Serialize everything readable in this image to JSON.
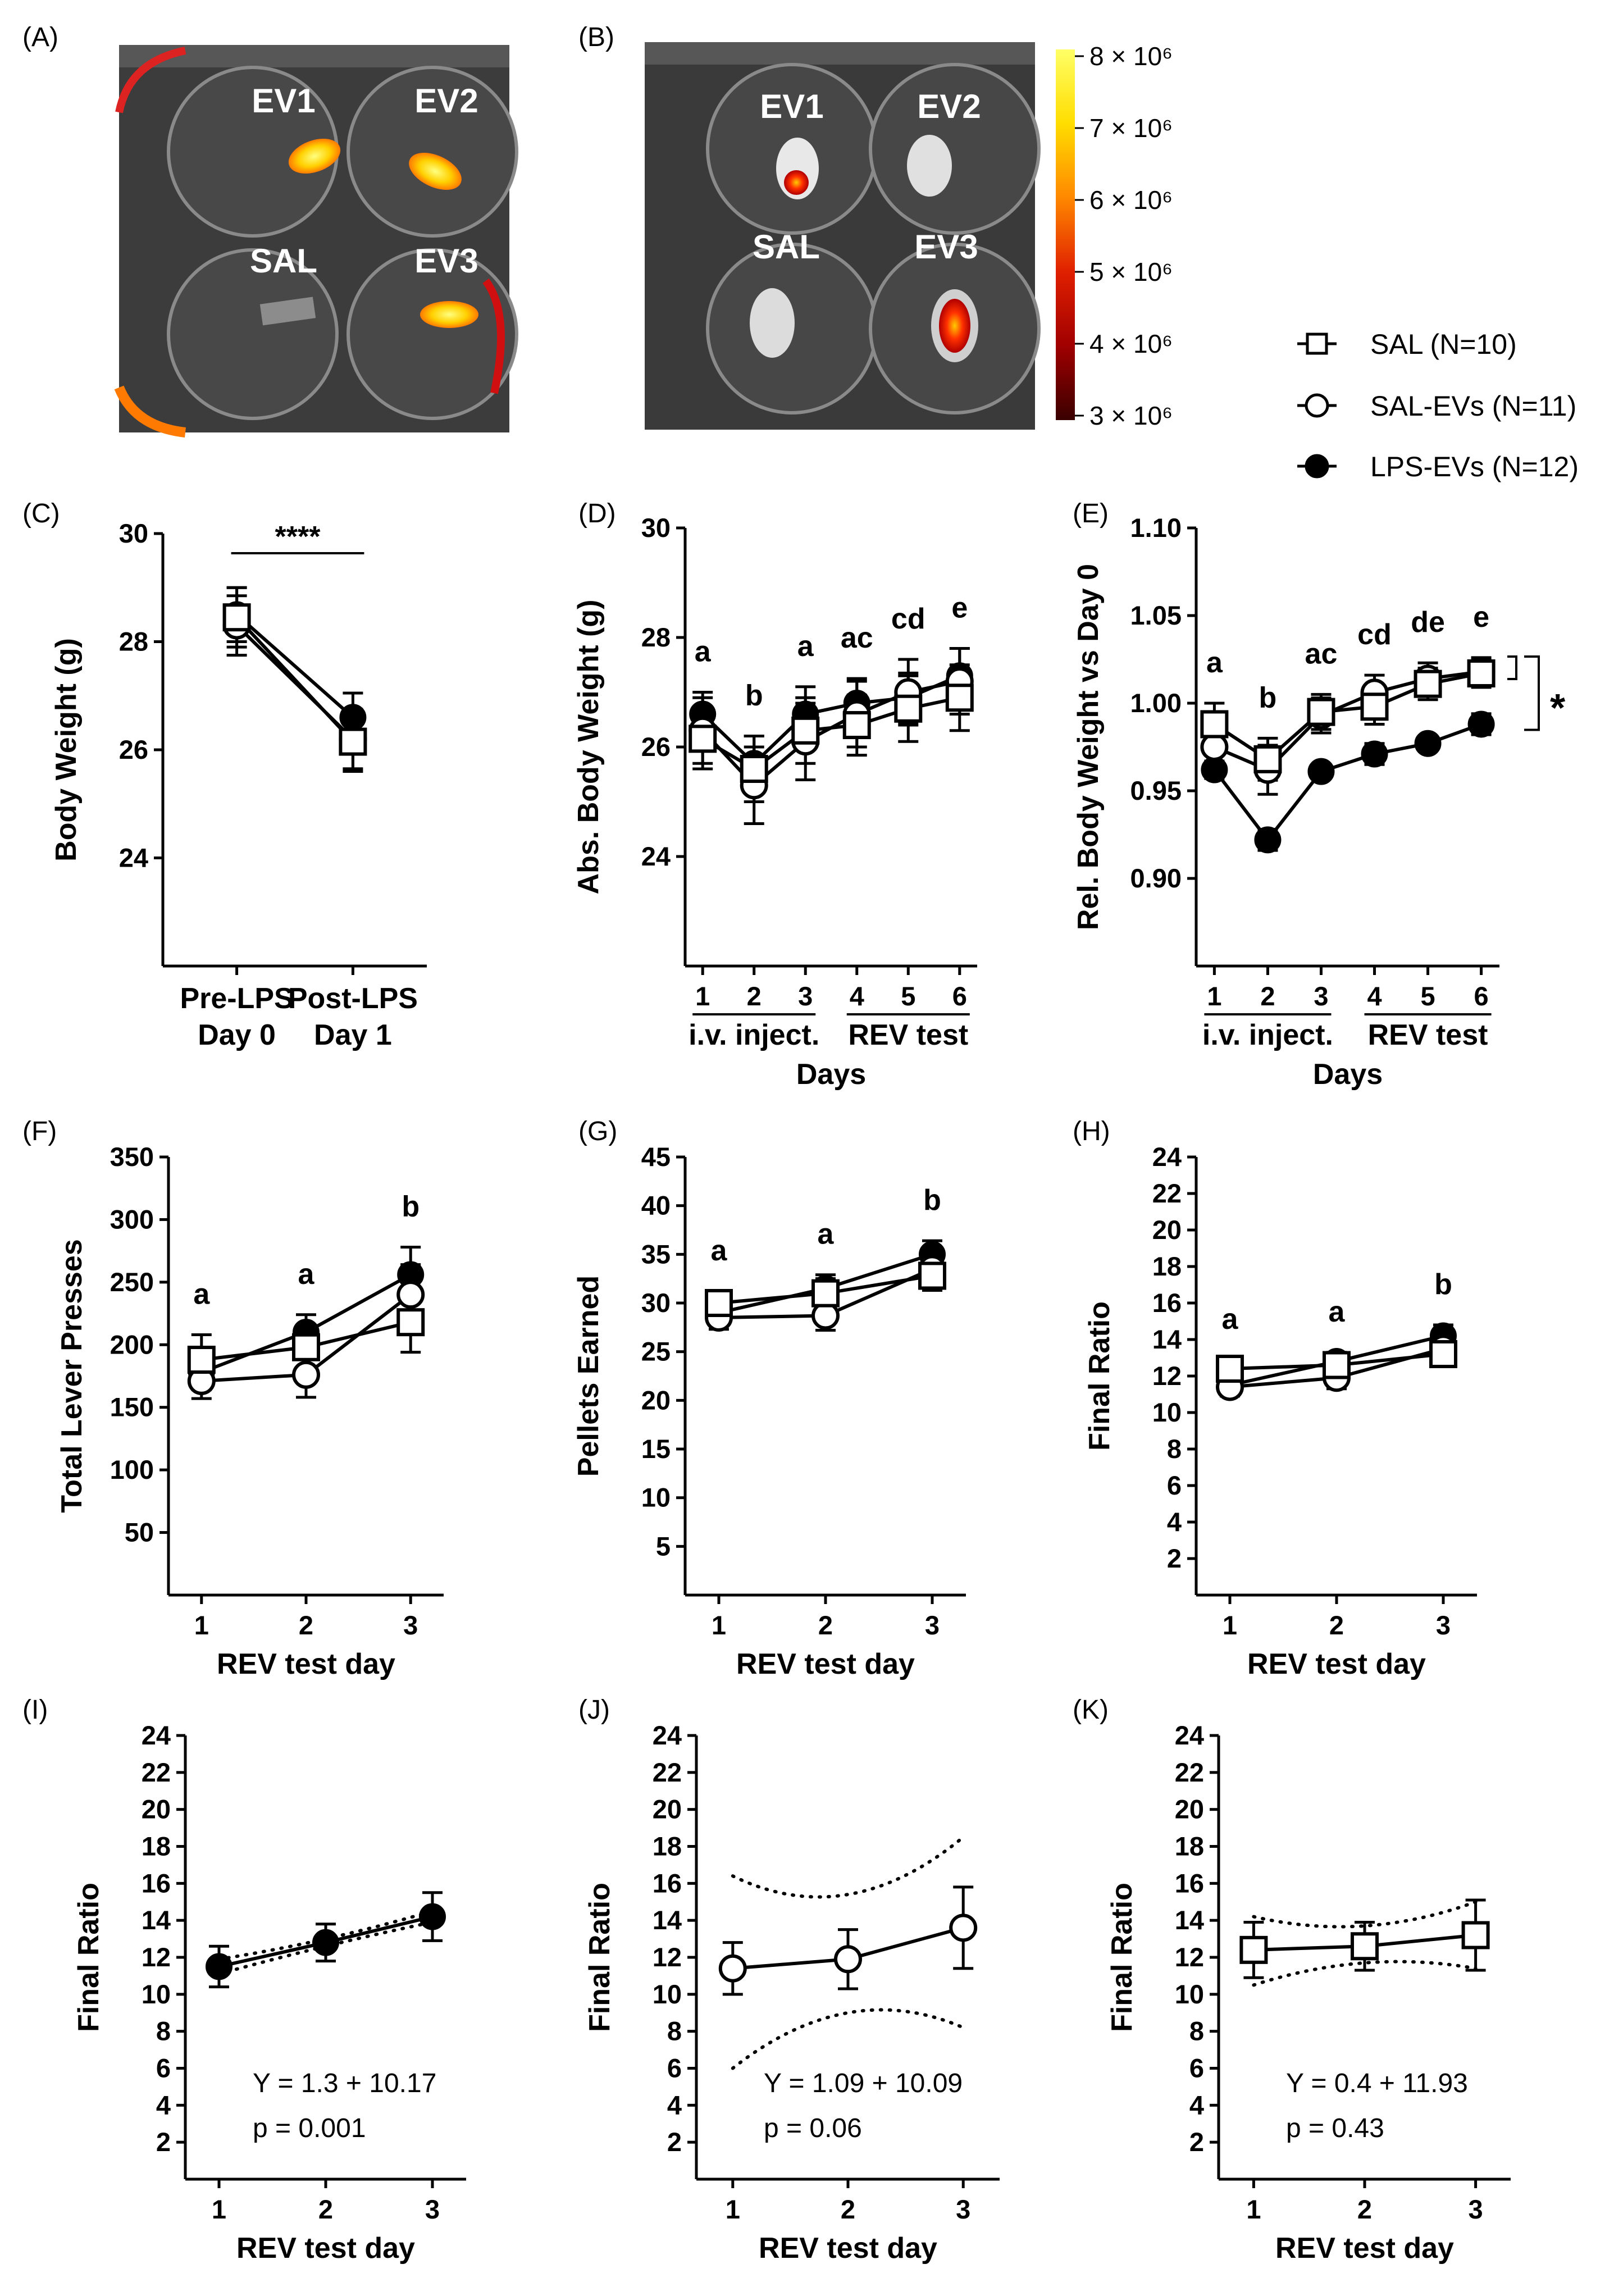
{
  "legend": {
    "items": [
      {
        "label": "SAL (N=10)",
        "marker": "open-square"
      },
      {
        "label": "SAL-EVs (N=11)",
        "marker": "open-circle"
      },
      {
        "label": "LPS-EVs (N=12)",
        "marker": "filled-circle"
      }
    ]
  },
  "images": {
    "A": {
      "letter": "(A)",
      "wells": [
        "EV1",
        "EV2",
        "SAL",
        "EV3"
      ]
    },
    "B": {
      "letter": "(B)",
      "wells": [
        "EV1",
        "EV2",
        "SAL",
        "EV3"
      ]
    },
    "colorbar": {
      "ticks": [
        "8 × 10⁶",
        "7 × 10⁶",
        "6 × 10⁶",
        "5 × 10⁶",
        "4 × 10⁶",
        "3 × 10⁶"
      ],
      "colors": [
        "#ffff66",
        "#ffdd00",
        "#ff8800",
        "#e02000",
        "#a00000",
        "#3a0000"
      ]
    }
  },
  "chart_data": [
    {
      "id": "C",
      "letter": "(C)",
      "type": "line",
      "ylabel": "Body Weight (g)",
      "xlabel": "",
      "ylim": [
        22,
        30
      ],
      "yticks": [
        24,
        26,
        28,
        30
      ],
      "categories": [
        [
          "Pre-LPS",
          "Day 0"
        ],
        [
          "Post-LPS",
          "Day 1"
        ]
      ],
      "annotations": [
        {
          "text": "****",
          "type": "bracket",
          "from": 0,
          "to": 1
        }
      ],
      "series": [
        {
          "name": "SAL",
          "marker": "open-square",
          "values": [
            28.45,
            26.15
          ],
          "err": [
            0.55,
            0.55
          ]
        },
        {
          "name": "SAL-EVs",
          "marker": "open-circle",
          "values": [
            28.3,
            26.2
          ],
          "err": [
            0.55,
            0.55
          ]
        },
        {
          "name": "LPS-EVs",
          "marker": "filled-circle",
          "values": [
            28.5,
            26.6
          ],
          "err": [
            0.5,
            0.45
          ]
        }
      ]
    },
    {
      "id": "D",
      "letter": "(D)",
      "type": "line",
      "ylabel": "Abs. Body Weight (g)",
      "xlabel": "Days",
      "ylim": [
        22,
        30
      ],
      "yticks": [
        24,
        26,
        28,
        30
      ],
      "x": [
        1,
        2,
        3,
        4,
        5,
        6
      ],
      "groups": [
        {
          "label": "i.v. inject.",
          "from": 1,
          "to": 3
        },
        {
          "label": "REV test",
          "from": 4,
          "to": 6
        }
      ],
      "letters": [
        "a",
        "b",
        "a",
        "ac",
        "cd",
        "e"
      ],
      "series": [
        {
          "name": "SAL",
          "marker": "open-square",
          "values": [
            26.15,
            25.6,
            26.3,
            26.4,
            26.7,
            26.9
          ],
          "err": [
            0.55,
            0.6,
            0.6,
            0.55,
            0.6,
            0.6
          ]
        },
        {
          "name": "SAL-EVs",
          "marker": "open-circle",
          "values": [
            26.3,
            25.3,
            26.1,
            26.6,
            27.0,
            27.2
          ],
          "err": [
            0.6,
            0.7,
            0.7,
            0.6,
            0.6,
            0.6
          ]
        },
        {
          "name": "LPS-EVs",
          "marker": "filled-circle",
          "values": [
            26.6,
            25.7,
            26.6,
            26.8,
            26.9,
            27.3
          ],
          "err": [
            0.4,
            0.5,
            0.5,
            0.45,
            0.45,
            0.5
          ]
        }
      ]
    },
    {
      "id": "E",
      "letter": "(E)",
      "type": "line",
      "ylabel": "Rel. Body Weight vs Day 0",
      "xlabel": "Days",
      "ylim": [
        0.85,
        1.1
      ],
      "yticks": [
        "0.90",
        "0.95",
        "1.00",
        "1.05",
        "1.10"
      ],
      "x": [
        1,
        2,
        3,
        4,
        5,
        6
      ],
      "groups": [
        {
          "label": "i.v. inject.",
          "from": 1,
          "to": 3
        },
        {
          "label": "REV test",
          "from": 4,
          "to": 6
        }
      ],
      "letters": [
        "a",
        "b",
        "ac",
        "cd",
        "de",
        "e"
      ],
      "annotations": [
        {
          "text": "*",
          "type": "bracket-right"
        }
      ],
      "series": [
        {
          "name": "SAL",
          "marker": "open-square",
          "values": [
            0.988,
            0.968,
            0.995,
            0.998,
            1.011,
            1.017
          ],
          "err": [
            0.012,
            0.012,
            0.01,
            0.01,
            0.009,
            0.008
          ]
        },
        {
          "name": "SAL-EVs",
          "marker": "open-circle",
          "values": [
            0.975,
            0.962,
            0.993,
            1.006,
            1.014,
            1.018
          ],
          "err": [
            0.01,
            0.014,
            0.01,
            0.01,
            0.009,
            0.008
          ]
        },
        {
          "name": "LPS-EVs",
          "marker": "filled-circle",
          "values": [
            0.962,
            0.922,
            0.961,
            0.971,
            0.977,
            0.988
          ],
          "err": [
            0.005,
            0.006,
            0.004,
            0.006,
            0.004,
            0.006
          ]
        }
      ]
    },
    {
      "id": "F",
      "letter": "(F)",
      "type": "line",
      "ylabel": "Total Lever Presses",
      "xlabel": "REV test day",
      "ylim": [
        0,
        350
      ],
      "yticks": [
        50,
        100,
        150,
        200,
        250,
        300,
        350
      ],
      "x": [
        1,
        2,
        3
      ],
      "letters": [
        "a",
        "a",
        "b"
      ],
      "series": [
        {
          "name": "SAL",
          "marker": "open-square",
          "values": [
            188,
            198,
            218
          ],
          "err": [
            20,
            16,
            24
          ]
        },
        {
          "name": "SAL-EVs",
          "marker": "open-circle",
          "values": [
            171,
            176,
            240
          ],
          "err": [
            14,
            18,
            24
          ]
        },
        {
          "name": "LPS-EVs",
          "marker": "filled-circle",
          "values": [
            178,
            210,
            256
          ],
          "err": [
            14,
            14,
            22
          ]
        }
      ]
    },
    {
      "id": "G",
      "letter": "(G)",
      "type": "line",
      "ylabel": "Pellets Earned",
      "xlabel": "REV test day",
      "ylim": [
        0,
        45
      ],
      "yticks": [
        5,
        10,
        15,
        20,
        25,
        30,
        35,
        40,
        45
      ],
      "x": [
        1,
        2,
        3
      ],
      "letters": [
        "a",
        "a",
        "b"
      ],
      "series": [
        {
          "name": "SAL",
          "marker": "open-square",
          "values": [
            30.0,
            31.0,
            32.8
          ],
          "err": [
            1.2,
            1.5,
            1.5
          ]
        },
        {
          "name": "SAL-EVs",
          "marker": "open-circle",
          "values": [
            28.5,
            28.7,
            33.5
          ],
          "err": [
            1.2,
            1.5,
            1.5
          ]
        },
        {
          "name": "LPS-EVs",
          "marker": "filled-circle",
          "values": [
            29.0,
            31.5,
            35.0
          ],
          "err": [
            1.0,
            1.4,
            1.4
          ]
        }
      ]
    },
    {
      "id": "H",
      "letter": "(H)",
      "type": "line",
      "ylabel": "Final Ratio",
      "xlabel": "REV test day",
      "ylim": [
        0,
        24
      ],
      "yticks": [
        2,
        4,
        6,
        8,
        10,
        12,
        14,
        16,
        18,
        20,
        22,
        24
      ],
      "x": [
        1,
        2,
        3
      ],
      "letters": [
        "a",
        "a",
        "b"
      ],
      "series": [
        {
          "name": "SAL",
          "marker": "open-square",
          "values": [
            12.4,
            12.6,
            13.2
          ],
          "err": [
            0.5,
            0.5,
            0.5
          ]
        },
        {
          "name": "SAL-EVs",
          "marker": "open-circle",
          "values": [
            11.4,
            11.9,
            13.5
          ],
          "err": [
            0.5,
            0.6,
            0.6
          ]
        },
        {
          "name": "LPS-EVs",
          "marker": "filled-circle",
          "values": [
            11.5,
            12.8,
            14.2
          ],
          "err": [
            0.5,
            0.5,
            0.6
          ]
        }
      ]
    },
    {
      "id": "I",
      "letter": "(I)",
      "type": "line",
      "ylabel": "Final Ratio",
      "xlabel": "REV test day",
      "ylim": [
        0,
        24
      ],
      "yticks": [
        2,
        4,
        6,
        8,
        10,
        12,
        14,
        16,
        18,
        20,
        22,
        24
      ],
      "x": [
        1,
        2,
        3
      ],
      "equation": "Y = 1.3 + 10.17",
      "pvalue": "p = 0.001",
      "band": {
        "upper": [
          11.9,
          13.0,
          14.5
        ],
        "lower": [
          11.1,
          12.6,
          13.9
        ]
      },
      "series": [
        {
          "name": "LPS-EVs",
          "marker": "filled-circle",
          "values": [
            11.5,
            12.8,
            14.2
          ],
          "err": [
            1.1,
            1.0,
            1.3
          ]
        }
      ]
    },
    {
      "id": "J",
      "letter": "(J)",
      "type": "line",
      "ylabel": "Final Ratio",
      "xlabel": "REV test day",
      "ylim": [
        0,
        24
      ],
      "yticks": [
        2,
        4,
        6,
        8,
        10,
        12,
        14,
        16,
        18,
        20,
        22,
        24
      ],
      "x": [
        1,
        2,
        3
      ],
      "equation": "Y = 1.09 + 10.09",
      "pvalue": "p = 0.06",
      "band": {
        "upper": [
          16.4,
          15.4,
          18.5
        ],
        "lower": [
          6.0,
          9.0,
          8.2
        ]
      },
      "series": [
        {
          "name": "SAL-EVs",
          "marker": "open-circle",
          "values": [
            11.4,
            11.9,
            13.6
          ],
          "err": [
            1.4,
            1.6,
            2.2
          ]
        }
      ]
    },
    {
      "id": "K",
      "letter": "(K)",
      "type": "line",
      "ylabel": "Final Ratio",
      "xlabel": "REV test day",
      "ylim": [
        0,
        24
      ],
      "yticks": [
        2,
        4,
        6,
        8,
        10,
        12,
        14,
        16,
        18,
        20,
        22,
        24
      ],
      "x": [
        1,
        2,
        3
      ],
      "equation": "Y = 0.4 + 11.93",
      "pvalue": "p = 0.43",
      "band": {
        "upper": [
          14.2,
          13.7,
          15.0
        ],
        "lower": [
          10.5,
          11.7,
          11.4
        ]
      },
      "series": [
        {
          "name": "SAL",
          "marker": "open-square",
          "values": [
            12.4,
            12.6,
            13.2
          ],
          "err": [
            1.5,
            1.3,
            1.9
          ]
        }
      ]
    }
  ]
}
